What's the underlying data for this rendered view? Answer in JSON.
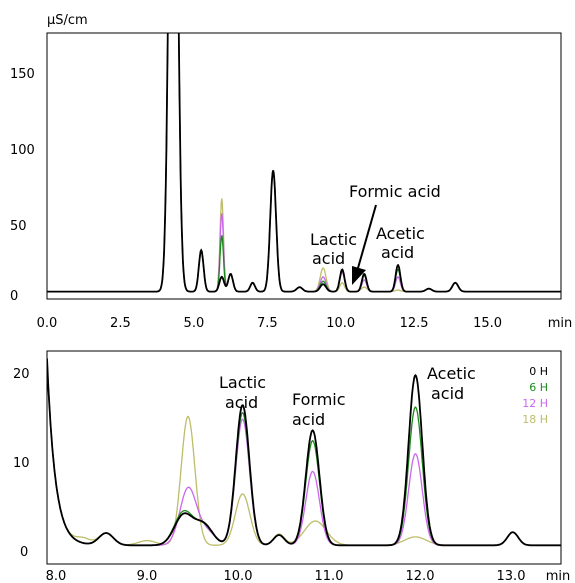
{
  "colors": {
    "0H": "#000000",
    "6H": "#1a8a1a",
    "12H": "#cc66ee",
    "18H": "#bdbd6a"
  },
  "chart_data": [
    {
      "type": "line",
      "ylabel": "µS/cm",
      "xlabel": "min",
      "xlim": [
        0,
        17.5
      ],
      "ylim": [
        -5,
        175
      ],
      "xticks": [
        "0.0",
        "2.5",
        "5.0",
        "7.5",
        "10.0",
        "12.5",
        "15.0"
      ],
      "yticks": [
        "0",
        "50",
        "100",
        "150"
      ],
      "annotations": [
        "Formic acid",
        "Lactic acid",
        "Acetic acid"
      ],
      "series": [
        {
          "name": "0 H",
          "color_key": "0H",
          "peaks": [
            [
              4.3,
              500,
              0.13
            ],
            [
              5.25,
              28,
              0.08
            ],
            [
              5.95,
              10,
              0.08
            ],
            [
              6.25,
              12,
              0.08
            ],
            [
              7.0,
              6,
              0.08
            ],
            [
              7.7,
              82,
              0.1
            ],
            [
              8.6,
              3,
              0.1
            ],
            [
              9.4,
              5,
              0.1
            ],
            [
              10.05,
              15,
              0.08
            ],
            [
              10.8,
              12,
              0.08
            ],
            [
              11.95,
              18,
              0.08
            ],
            [
              13.0,
              2,
              0.1
            ],
            [
              13.9,
              6,
              0.1
            ]
          ]
        },
        {
          "name": "6 H",
          "color_key": "6H",
          "peaks": [
            [
              4.3,
              500,
              0.13
            ],
            [
              5.25,
              28,
              0.08
            ],
            [
              5.95,
              38,
              0.06
            ],
            [
              6.25,
              12,
              0.08
            ],
            [
              7.0,
              6,
              0.08
            ],
            [
              7.7,
              82,
              0.1
            ],
            [
              8.6,
              3,
              0.1
            ],
            [
              9.4,
              7,
              0.1
            ],
            [
              10.05,
              14,
              0.08
            ],
            [
              10.8,
              11,
              0.08
            ],
            [
              11.95,
              15,
              0.08
            ],
            [
              13.0,
              2,
              0.1
            ],
            [
              13.9,
              6,
              0.1
            ]
          ]
        },
        {
          "name": "12 H",
          "color_key": "12H",
          "peaks": [
            [
              4.3,
              500,
              0.13
            ],
            [
              5.25,
              28,
              0.08
            ],
            [
              5.95,
              53,
              0.06
            ],
            [
              6.25,
              12,
              0.08
            ],
            [
              7.0,
              6,
              0.08
            ],
            [
              7.7,
              82,
              0.1
            ],
            [
              8.6,
              3,
              0.1
            ],
            [
              9.4,
              10,
              0.1
            ],
            [
              10.05,
              13,
              0.08
            ],
            [
              10.8,
              8,
              0.08
            ],
            [
              11.95,
              10,
              0.08
            ],
            [
              13.0,
              2,
              0.1
            ],
            [
              13.9,
              6,
              0.1
            ]
          ]
        },
        {
          "name": "18 H",
          "color_key": "18H",
          "peaks": [
            [
              4.3,
              500,
              0.13
            ],
            [
              5.25,
              28,
              0.08
            ],
            [
              5.95,
              63,
              0.06
            ],
            [
              6.25,
              12,
              0.08
            ],
            [
              7.0,
              6,
              0.08
            ],
            [
              7.7,
              82,
              0.1
            ],
            [
              8.6,
              3,
              0.1
            ],
            [
              9.4,
              16,
              0.1
            ],
            [
              10.05,
              6,
              0.08
            ],
            [
              10.8,
              3,
              0.1
            ],
            [
              11.95,
              1,
              0.1
            ],
            [
              13.0,
              2,
              0.1
            ],
            [
              13.9,
              6,
              0.1
            ]
          ]
        }
      ]
    },
    {
      "type": "line",
      "xlabel": "min",
      "xlim": [
        7.9,
        13.55
      ],
      "ylim": [
        -0.8,
        22
      ],
      "xticks": [
        "8.0",
        "9.0",
        "10.0",
        "11.0",
        "12.0",
        "13.0"
      ],
      "yticks": [
        "0",
        "10",
        "20"
      ],
      "annotations": [
        "Lactic acid",
        "Formic acid",
        "Acetic acid"
      ],
      "legend": [
        "0 H",
        "6 H",
        "12 H",
        "18 H"
      ],
      "legend_position": "top-right",
      "series": [
        {
          "name": "0 H",
          "color_key": "0H",
          "peaks": [
            [
              8.55,
              1.3,
              0.08
            ],
            [
              9.4,
              3.2,
              0.1
            ],
            [
              9.62,
              2.2,
              0.1
            ],
            [
              10.05,
              15,
              0.075
            ],
            [
              10.45,
              1.1,
              0.06
            ],
            [
              10.82,
              12.3,
              0.075
            ],
            [
              11.95,
              18.2,
              0.075
            ],
            [
              13.02,
              1.4,
              0.06
            ]
          ]
        },
        {
          "name": "6 H",
          "color_key": "6H",
          "peaks": [
            [
              8.55,
              1.3,
              0.08
            ],
            [
              9.4,
              3.5,
              0.1
            ],
            [
              9.62,
              2.1,
              0.1
            ],
            [
              10.05,
              14.2,
              0.075
            ],
            [
              10.45,
              1.1,
              0.06
            ],
            [
              10.82,
              11.2,
              0.075
            ],
            [
              11.95,
              14.8,
              0.075
            ],
            [
              13.02,
              1.4,
              0.06
            ]
          ]
        },
        {
          "name": "12 H",
          "color_key": "12H",
          "peaks": [
            [
              8.55,
              1.3,
              0.08
            ],
            [
              9.45,
              6,
              0.09
            ],
            [
              9.65,
              1.5,
              0.1
            ],
            [
              10.05,
              13.5,
              0.075
            ],
            [
              10.45,
              1.1,
              0.06
            ],
            [
              10.82,
              7.9,
              0.075
            ],
            [
              11.95,
              9.8,
              0.075
            ],
            [
              13.02,
              1.4,
              0.06
            ]
          ]
        },
        {
          "name": "18 H",
          "color_key": "18H",
          "peaks": [
            [
              8.3,
              0.6,
              0.08
            ],
            [
              8.55,
              1.3,
              0.08
            ],
            [
              9.0,
              0.5,
              0.1
            ],
            [
              9.45,
              13.8,
              0.075
            ],
            [
              10.05,
              5.5,
              0.08
            ],
            [
              10.45,
              1.2,
              0.06
            ],
            [
              10.85,
              2.6,
              0.12
            ],
            [
              11.95,
              0.9,
              0.12
            ],
            [
              13.02,
              1.4,
              0.06
            ]
          ]
        }
      ]
    }
  ]
}
